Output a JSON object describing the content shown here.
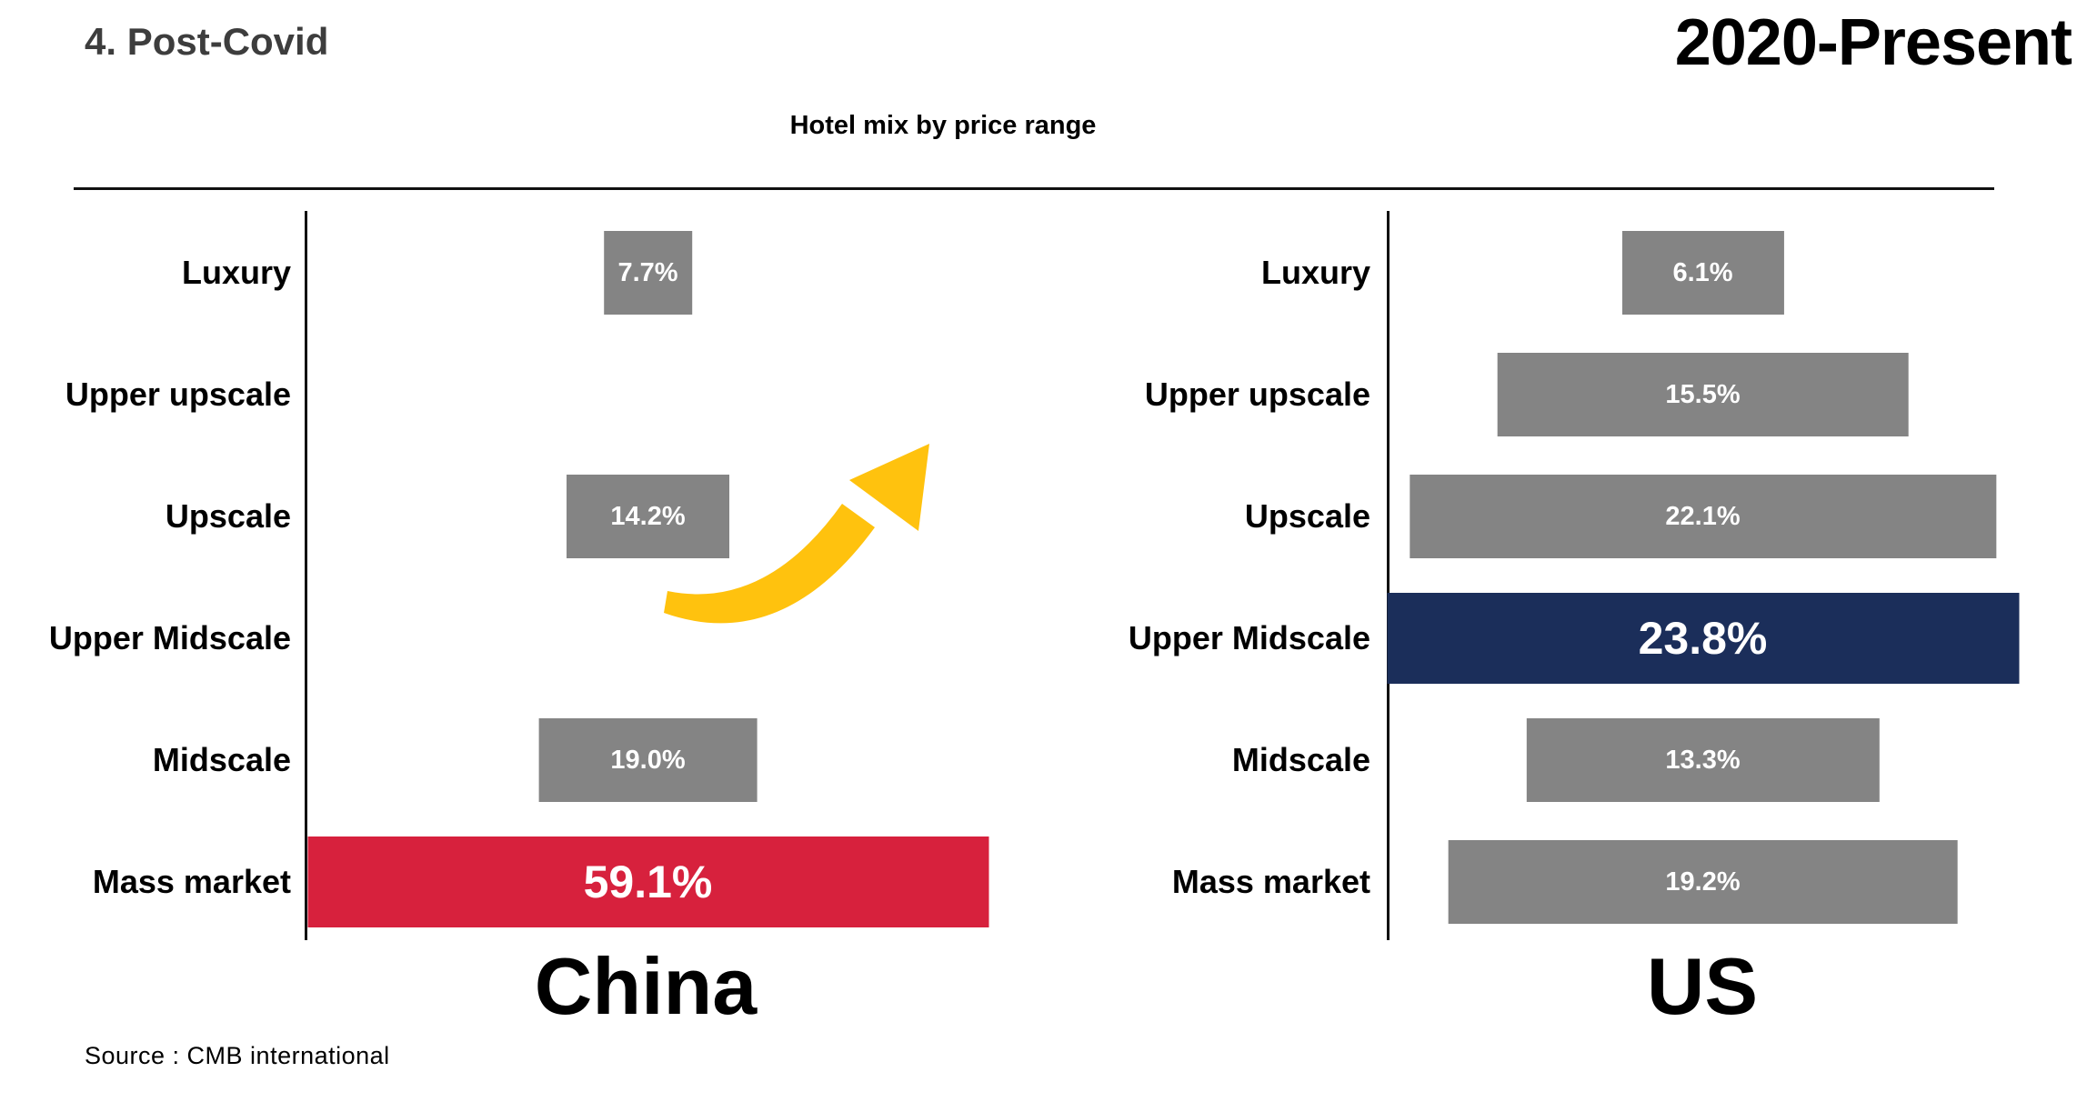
{
  "header": {
    "section_title": "4. Post-Covid",
    "period": "2020-Present",
    "chart_title": "Hotel mix by price range"
  },
  "arrow": {
    "icon": "curved-up-arrow",
    "color": "#FFC20E"
  },
  "footer": {
    "source": "Source : CMB international"
  },
  "chart_data": [
    {
      "type": "bar",
      "name": "China",
      "orientation": "horizontal-centered",
      "categories": [
        "Luxury",
        "Upper upscale",
        "Upscale",
        "Upper Midscale",
        "Midscale",
        "Mass market"
      ],
      "values": [
        7.7,
        null,
        14.2,
        null,
        19.0,
        59.1
      ],
      "value_labels": [
        "7.7%",
        "",
        "14.2%",
        "",
        "19.0%",
        "59.1%"
      ],
      "highlight_index": 5,
      "bar_color": "#848484",
      "highlight_color": "#D7213D",
      "xlim": [
        0,
        59.1
      ],
      "legend": "none",
      "grid": false
    },
    {
      "type": "bar",
      "name": "US",
      "orientation": "horizontal-centered",
      "categories": [
        "Luxury",
        "Upper upscale",
        "Upscale",
        "Upper Midscale",
        "Midscale",
        "Mass market"
      ],
      "values": [
        6.1,
        15.5,
        22.1,
        23.8,
        13.3,
        19.2
      ],
      "value_labels": [
        "6.1%",
        "15.5%",
        "22.1%",
        "23.8%",
        "13.3%",
        "19.2%"
      ],
      "highlight_index": 3,
      "bar_color": "#848484",
      "highlight_color": "#1B2E5A",
      "xlim": [
        0,
        23.8
      ],
      "legend": "none",
      "grid": false
    }
  ]
}
